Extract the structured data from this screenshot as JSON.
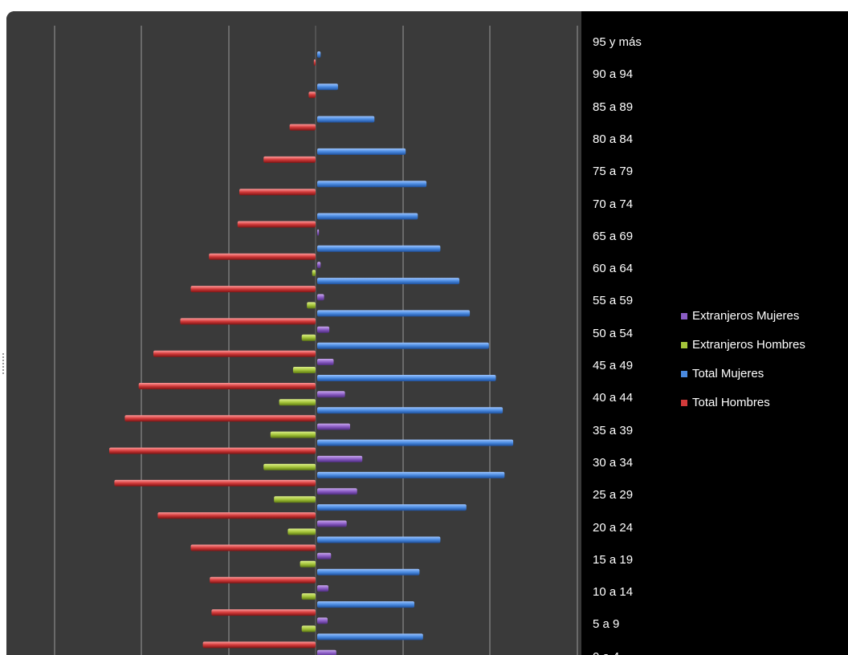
{
  "chart_data": {
    "type": "bar",
    "orientation": "horizontal",
    "chart_kind": "population pyramid",
    "categories": [
      "95 y más",
      "90 a 94",
      "85 a 89",
      "80 a 84",
      "75 a 79",
      "70 a 74",
      "65 a 69",
      "60 a 64",
      "55 a 59",
      "50 a 54",
      "45 a 49",
      "40 a 44",
      "35 a 39",
      "30 a 34",
      "25 a 29",
      "20 a 24",
      "15 a 19",
      "10 a 14",
      "5 a 9",
      "0 a 4"
    ],
    "series": [
      {
        "name": "Extranjeros Mujeres",
        "color": "#8a5cc4",
        "values": [
          0,
          0,
          0,
          0,
          0,
          0,
          0.2,
          0.4,
          0.8,
          1.4,
          1.9,
          3.2,
          3.8,
          5.2,
          4.6,
          3.4,
          1.6,
          1.3,
          1.2,
          2.2
        ]
      },
      {
        "name": "Extranjeros Hombres",
        "color": "#a4c43a",
        "values": [
          0,
          0,
          0,
          0,
          0,
          0,
          0,
          -0.4,
          -1.0,
          -1.6,
          -2.6,
          -4.2,
          -5.2,
          -6.0,
          -4.8,
          -3.2,
          -1.8,
          -1.6,
          -1.6,
          -2.4
        ]
      },
      {
        "name": "Total Mujeres",
        "color": "#4a8ae0",
        "values": [
          0.4,
          2.4,
          6.6,
          10.2,
          12.6,
          11.6,
          14.2,
          16.4,
          17.6,
          19.8,
          20.6,
          21.4,
          22.6,
          21.6,
          17.2,
          14.2,
          11.8,
          11.2,
          12.2,
          0
        ]
      },
      {
        "name": "Total Hombres",
        "color": "#d23a3a",
        "values": [
          -0.2,
          -0.8,
          -3.0,
          -6.0,
          -8.8,
          -9.0,
          -12.3,
          -14.4,
          -15.6,
          -18.7,
          -20.4,
          -22.0,
          -23.8,
          -23.2,
          -18.2,
          -14.4,
          -12.2,
          -12.0,
          -13.0,
          0
        ]
      }
    ],
    "xlim": [
      -33,
      33
    ],
    "grid": true,
    "legend_position": "right"
  }
}
